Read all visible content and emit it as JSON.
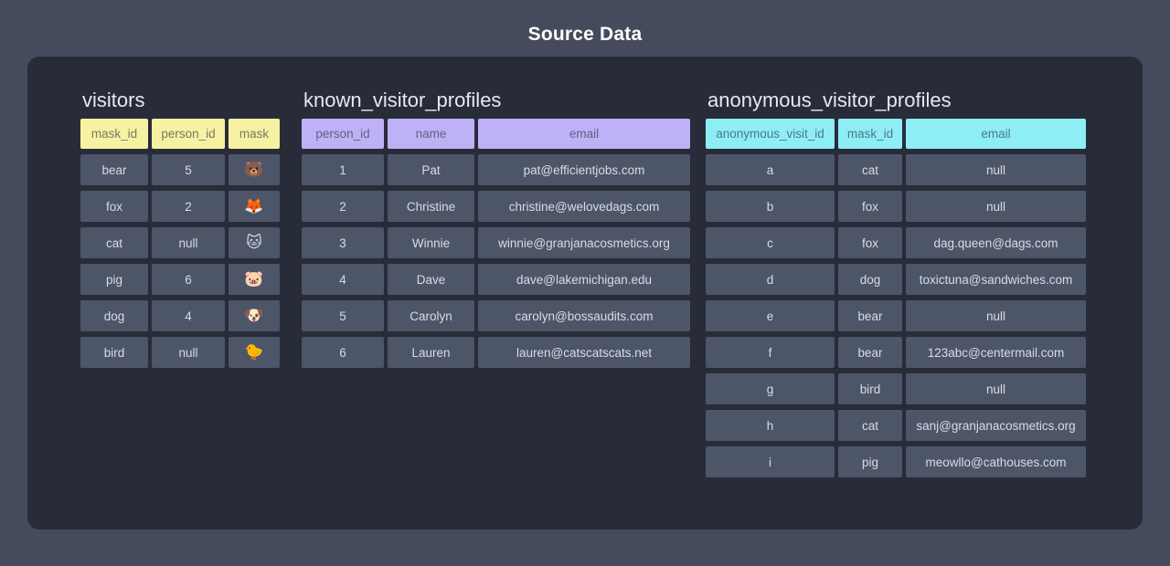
{
  "page": {
    "title": "Source Data"
  },
  "colors": {
    "background": "#454a5c",
    "panel": "#282c39",
    "cell": "#4d5568",
    "cell_text": "#d8dce4",
    "visitors_header": "#f6f2a2",
    "known_header": "#bfb1f5",
    "anonymous_header": "#8deef6"
  },
  "tables": [
    {
      "name": "visitors",
      "header_color": "#f6f2a2",
      "columns": [
        "mask_id",
        "person_id",
        "mask"
      ],
      "rows": [
        [
          "bear",
          "5",
          "🐻"
        ],
        [
          "fox",
          "2",
          "🦊"
        ],
        [
          "cat",
          "null",
          "🐱"
        ],
        [
          "pig",
          "6",
          "🐷"
        ],
        [
          "dog",
          "4",
          "🐶"
        ],
        [
          "bird",
          "null",
          "🐤"
        ]
      ]
    },
    {
      "name": "known_visitor_profiles",
      "header_color": "#bfb1f5",
      "columns": [
        "person_id",
        "name",
        "email"
      ],
      "rows": [
        [
          "1",
          "Pat",
          "pat@efficientjobs.com"
        ],
        [
          "2",
          "Christine",
          "christine@welovedags.com"
        ],
        [
          "3",
          "Winnie",
          "winnie@granjanacosmetics.org"
        ],
        [
          "4",
          "Dave",
          "dave@lakemichigan.edu"
        ],
        [
          "5",
          "Carolyn",
          "carolyn@bossaudits.com"
        ],
        [
          "6",
          "Lauren",
          "lauren@catscatscats.net"
        ]
      ]
    },
    {
      "name": "anonymous_visitor_profiles",
      "header_color": "#8deef6",
      "columns": [
        "anonymous_visit_id",
        "mask_id",
        "email"
      ],
      "rows": [
        [
          "a",
          "cat",
          "null"
        ],
        [
          "b",
          "fox",
          "null"
        ],
        [
          "c",
          "fox",
          "dag.queen@dags.com"
        ],
        [
          "d",
          "dog",
          "toxictuna@sandwiches.com"
        ],
        [
          "e",
          "bear",
          "null"
        ],
        [
          "f",
          "bear",
          "123abc@centermail.com"
        ],
        [
          "g",
          "bird",
          "null"
        ],
        [
          "h",
          "cat",
          "sanj@granjanacosmetics.org"
        ],
        [
          "i",
          "pig",
          "meowllo@cathouses.com"
        ]
      ]
    }
  ]
}
